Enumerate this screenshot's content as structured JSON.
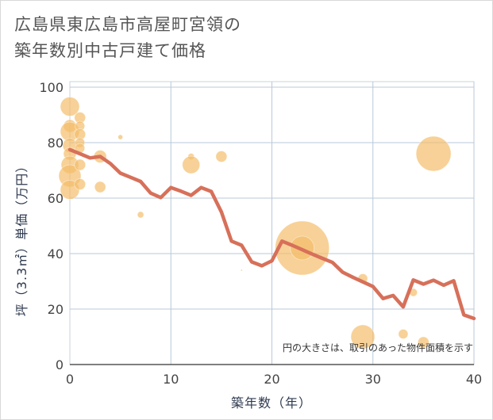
{
  "title_line1": "広島県東広島市高屋町宮領の",
  "title_line2": "築年数別中古戸建て価格",
  "chart_data": {
    "type": "scatter+line",
    "title": "広島県東広島市高屋町宮領の築年数別中古戸建て価格",
    "xlabel": "築年数（年）",
    "ylabel": "坪（3.3㎡）単価（万円）",
    "xlim": [
      0,
      40
    ],
    "ylim": [
      0,
      100
    ],
    "xticks": [
      0,
      10,
      20,
      30,
      40
    ],
    "yticks": [
      0,
      20,
      40,
      60,
      80,
      100
    ],
    "grid": true,
    "note": "円の大きさは、取引のあった物件面積を示す",
    "colors": {
      "bubble": "#f3bd6b",
      "line": "#d7705a",
      "grid": "#b8c9d9",
      "axis_text": "#444444"
    },
    "scatter": [
      {
        "x": 0,
        "y": 93,
        "s": 12
      },
      {
        "x": 0,
        "y": 86,
        "s": 8
      },
      {
        "x": 0,
        "y": 84,
        "s": 12
      },
      {
        "x": 0,
        "y": 79,
        "s": 9
      },
      {
        "x": 0,
        "y": 76,
        "s": 8
      },
      {
        "x": 0,
        "y": 72,
        "s": 11
      },
      {
        "x": 0,
        "y": 68,
        "s": 14
      },
      {
        "x": 0,
        "y": 63,
        "s": 12
      },
      {
        "x": 1,
        "y": 89,
        "s": 7
      },
      {
        "x": 1,
        "y": 86,
        "s": 6
      },
      {
        "x": 1,
        "y": 83,
        "s": 7
      },
      {
        "x": 1,
        "y": 80,
        "s": 6
      },
      {
        "x": 1,
        "y": 78,
        "s": 6
      },
      {
        "x": 1,
        "y": 72,
        "s": 7
      },
      {
        "x": 1,
        "y": 65,
        "s": 7
      },
      {
        "x": 3,
        "y": 75,
        "s": 8
      },
      {
        "x": 3,
        "y": 64,
        "s": 7
      },
      {
        "x": 5,
        "y": 82,
        "s": 3
      },
      {
        "x": 7,
        "y": 54,
        "s": 4
      },
      {
        "x": 12,
        "y": 75,
        "s": 4
      },
      {
        "x": 12,
        "y": 72,
        "s": 11
      },
      {
        "x": 15,
        "y": 75,
        "s": 7
      },
      {
        "x": 17,
        "y": 34,
        "s": 1
      },
      {
        "x": 23,
        "y": 42,
        "s": 34
      },
      {
        "x": 23,
        "y": 42,
        "s": 15
      },
      {
        "x": 29,
        "y": 31,
        "s": 6
      },
      {
        "x": 29,
        "y": 10,
        "s": 15
      },
      {
        "x": 33,
        "y": 11,
        "s": 6
      },
      {
        "x": 34,
        "y": 26,
        "s": 5
      },
      {
        "x": 35,
        "y": 8,
        "s": 7
      },
      {
        "x": 36,
        "y": 76,
        "s": 22
      }
    ],
    "line": {
      "x": [
        0,
        1,
        2,
        3,
        4,
        5,
        6,
        7,
        8,
        9,
        10,
        11,
        12,
        13,
        14,
        15,
        16,
        17,
        18,
        19,
        20,
        21,
        22,
        23,
        24,
        25,
        26,
        27,
        28,
        29,
        30,
        31,
        32,
        33,
        34,
        35,
        36,
        37,
        38,
        39,
        40
      ],
      "y": [
        77.5,
        76,
        74.5,
        75,
        72.5,
        69,
        67.5,
        66,
        61.8,
        60.2,
        63.8,
        62.5,
        61,
        63.8,
        62.4,
        55,
        44.5,
        43,
        37,
        35.6,
        37.4,
        44.5,
        43,
        41.4,
        39.8,
        38.3,
        36.8,
        33.3,
        31.5,
        29.8,
        28.1,
        23.8,
        24.9,
        20.8,
        30.5,
        29,
        30.4,
        28.6,
        30.2,
        17.9,
        16.6
      ]
    }
  }
}
